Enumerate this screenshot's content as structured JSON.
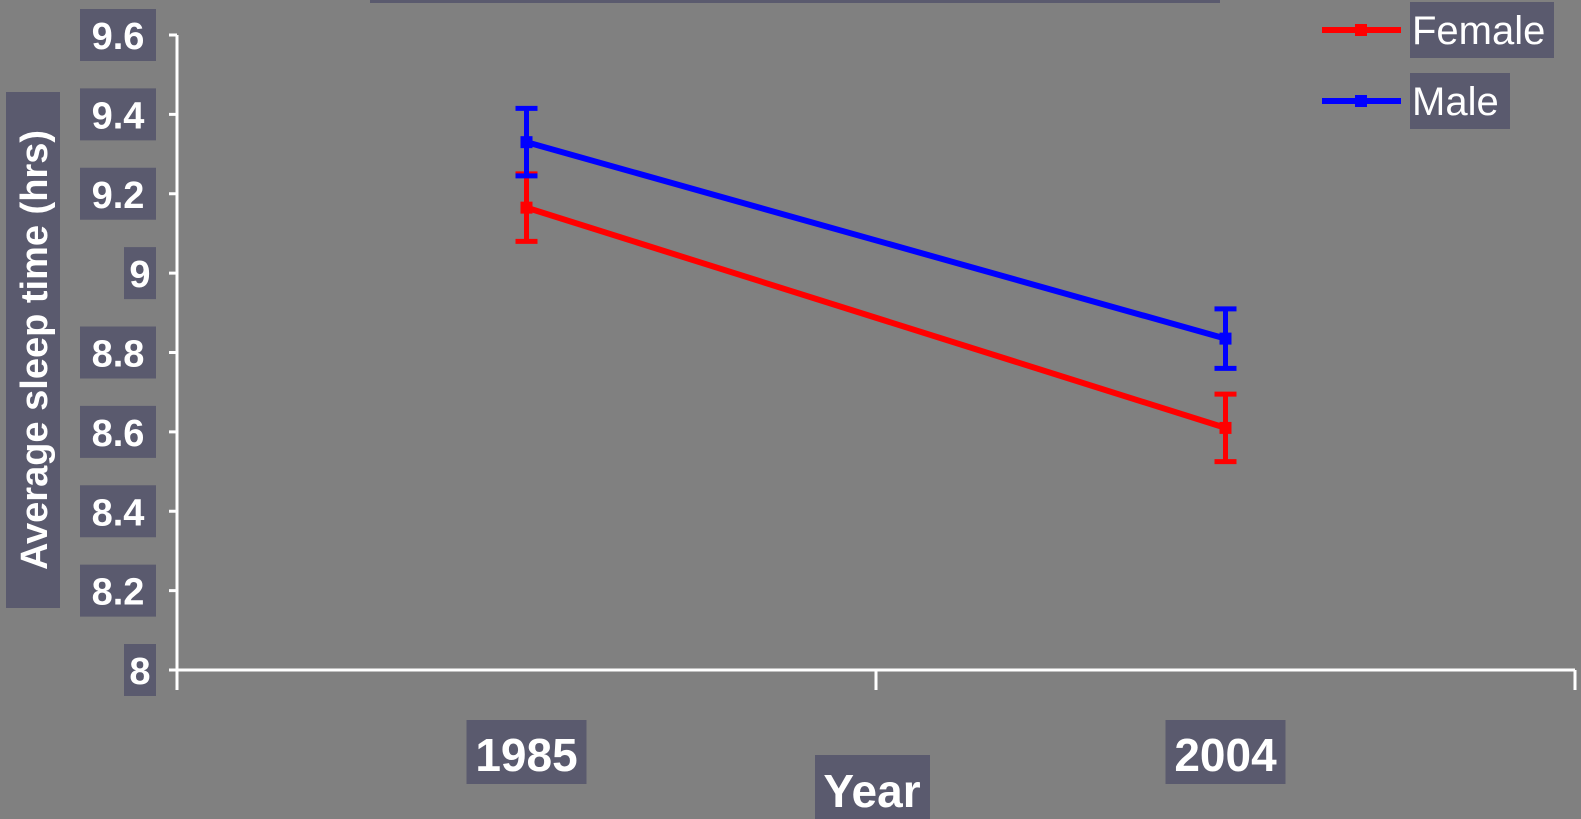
{
  "chart_data": {
    "type": "line",
    "xlabel": "Year",
    "ylabel": "Average sleep time (hrs)",
    "categories": [
      "1985",
      "2004"
    ],
    "ylim": [
      8,
      9.6
    ],
    "yticks": [
      "8",
      "8.2",
      "8.4",
      "8.6",
      "8.8",
      "9",
      "9.2",
      "9.4",
      "9.6"
    ],
    "grid": false,
    "legend_position": "top-right",
    "series": [
      {
        "name": "Female",
        "color": "#ff0000",
        "values": [
          9.165,
          8.61
        ],
        "error": [
          0.085,
          0.085
        ]
      },
      {
        "name": "Male",
        "color": "#0000ff",
        "values": [
          9.33,
          8.835
        ],
        "error": [
          0.085,
          0.075
        ]
      }
    ]
  },
  "colors": {
    "background": "#808080",
    "label_box": "#5a5a6e",
    "axis": "#ffffff",
    "text": "#ffffff"
  }
}
